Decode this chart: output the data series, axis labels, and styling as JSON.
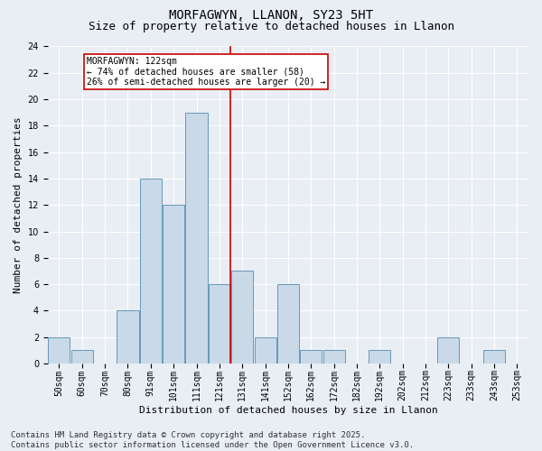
{
  "title": "MORFAGWYN, LLANON, SY23 5HT",
  "subtitle": "Size of property relative to detached houses in Llanon",
  "xlabel": "Distribution of detached houses by size in Llanon",
  "ylabel": "Number of detached properties",
  "bin_labels": [
    "50sqm",
    "60sqm",
    "70sqm",
    "80sqm",
    "91sqm",
    "101sqm",
    "111sqm",
    "121sqm",
    "131sqm",
    "141sqm",
    "152sqm",
    "162sqm",
    "172sqm",
    "182sqm",
    "192sqm",
    "202sqm",
    "212sqm",
    "223sqm",
    "233sqm",
    "243sqm",
    "253sqm"
  ],
  "bar_values": [
    2,
    1,
    0,
    4,
    14,
    12,
    19,
    6,
    7,
    2,
    6,
    1,
    1,
    0,
    1,
    0,
    0,
    2,
    0,
    1
  ],
  "bar_color": "#c9d9e8",
  "bar_edge_color": "#6699bb",
  "property_line_bin_index": 7,
  "property_sqm": 122,
  "annotation_line1": "MORFAGWYN: 122sqm",
  "annotation_line2": "← 74% of detached houses are smaller (58)",
  "annotation_line3": "26% of semi-detached houses are larger (20) →",
  "annotation_box_color": "#ffffff",
  "annotation_box_edge_color": "#cc0000",
  "property_line_color": "#cc0000",
  "ylim": [
    0,
    24
  ],
  "yticks": [
    0,
    2,
    4,
    6,
    8,
    10,
    12,
    14,
    16,
    18,
    20,
    22,
    24
  ],
  "background_color": "#e8eef4",
  "plot_background_color": "#e8eef4",
  "grid_color": "#ffffff",
  "footer_text": "Contains HM Land Registry data © Crown copyright and database right 2025.\nContains public sector information licensed under the Open Government Licence v3.0.",
  "title_fontsize": 10,
  "subtitle_fontsize": 9,
  "axis_label_fontsize": 8,
  "tick_fontsize": 7,
  "annotation_fontsize": 7,
  "footer_fontsize": 6.5
}
